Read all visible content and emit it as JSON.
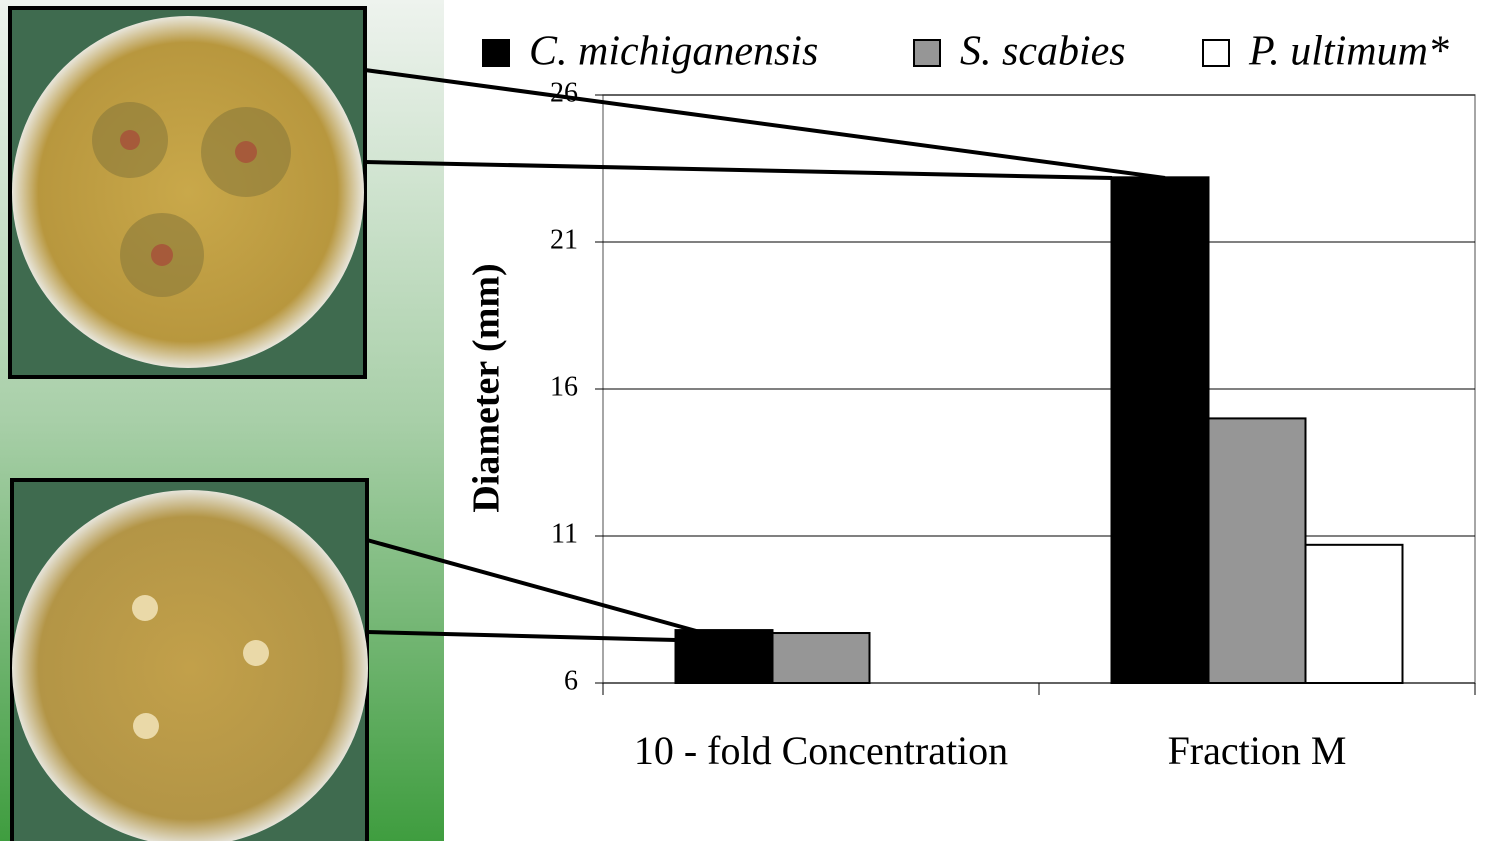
{
  "chart_data": {
    "type": "bar",
    "y_label": "Diameter (mm)",
    "categories": [
      "10 - fold Concentration",
      "Fraction M"
    ],
    "series": [
      {
        "name": "C. michiganensis",
        "color": "#000000",
        "values": [
          7.8,
          23.2
        ]
      },
      {
        "name": "S. scabies",
        "color": "#969696",
        "values": [
          7.7,
          15.0
        ]
      },
      {
        "name": "P. ultimum*",
        "color": "#ffffff",
        "values": [
          null,
          10.7
        ]
      }
    ],
    "ylim": [
      6,
      26
    ],
    "yticks": [
      6,
      11,
      16,
      21,
      26
    ],
    "grid": true,
    "legend": "top"
  }
}
